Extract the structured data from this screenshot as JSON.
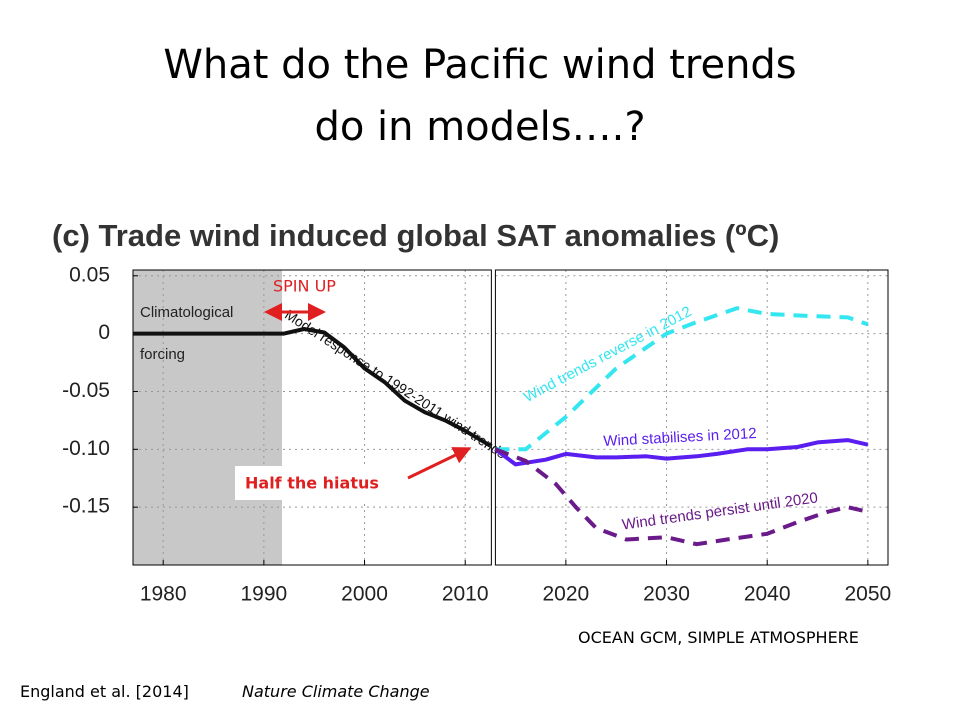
{
  "slide_title": [
    "What do the Pacific wind trends",
    "do in models….?"
  ],
  "chart_data": {
    "type": "line",
    "title": "(c) Trade wind induced global SAT anomalies (ºC)",
    "xlim": [
      1977,
      2052
    ],
    "ylim": [
      -0.2,
      0.055
    ],
    "xticks": [
      1980,
      1990,
      2000,
      2010,
      2020,
      2030,
      2040,
      2050
    ],
    "yticks": [
      0.05,
      0,
      -0.05,
      {
        "value": -0.1,
        "label": "-0.10"
      },
      -0.15
    ],
    "grid": true,
    "panels": [
      [
        1977,
        2012.6
      ],
      [
        2013,
        2052
      ]
    ],
    "shade": {
      "x": [
        1977,
        1991.8
      ],
      "color": "#c8c8c8",
      "labels": [
        "Climatological",
        "forcing"
      ]
    },
    "series": [
      {
        "name": "Model response to 1992-2011 wind trends",
        "color": "#111111",
        "dashed": false,
        "x": [
          1977,
          1992,
          1994,
          1996,
          1998,
          2000,
          2002,
          2004,
          2006,
          2008,
          2010,
          2012.5
        ],
        "values": [
          0,
          0,
          0.004,
          0.001,
          -0.012,
          -0.03,
          -0.042,
          -0.058,
          -0.068,
          -0.075,
          -0.084,
          -0.097
        ]
      },
      {
        "name": "Wind trends reverse in 2012",
        "color": "#33e6f0",
        "dashed": true,
        "x": [
          2013,
          2016,
          2020,
          2025,
          2030,
          2033,
          2037,
          2040,
          2045,
          2048,
          2050
        ],
        "values": [
          -0.1,
          -0.1,
          -0.072,
          -0.03,
          0,
          0.01,
          0.022,
          0.017,
          0.015,
          0.014,
          0.008
        ]
      },
      {
        "name": "Wind stabilises in 2012",
        "color": "#5a1ef0",
        "dashed": false,
        "x": [
          2013,
          2015,
          2018,
          2020,
          2023,
          2025,
          2028,
          2030,
          2033,
          2035,
          2038,
          2040,
          2043,
          2045,
          2048,
          2050
        ],
        "values": [
          -0.1,
          -0.113,
          -0.109,
          -0.104,
          -0.107,
          -0.107,
          -0.106,
          -0.108,
          -0.106,
          -0.104,
          -0.1,
          -0.1,
          -0.098,
          -0.094,
          -0.092,
          -0.096
        ]
      },
      {
        "name": "Wind trends persist until 2020",
        "color": "#6a1a8a",
        "dashed": true,
        "x": [
          2013,
          2016,
          2019,
          2021,
          2023,
          2026,
          2030,
          2033,
          2036,
          2040,
          2043,
          2046,
          2048,
          2050
        ],
        "values": [
          -0.1,
          -0.11,
          -0.13,
          -0.15,
          -0.168,
          -0.178,
          -0.176,
          -0.182,
          -0.178,
          -0.173,
          -0.163,
          -0.154,
          -0.15,
          -0.154
        ]
      }
    ],
    "annotations": [
      "SPIN UP",
      "Half the hiatus"
    ]
  },
  "model_note": "OCEAN GCM, SIMPLE ATMOSPHERE",
  "citation": {
    "authors": "England et al. [2014]",
    "journal": "Nature Climate Change"
  }
}
